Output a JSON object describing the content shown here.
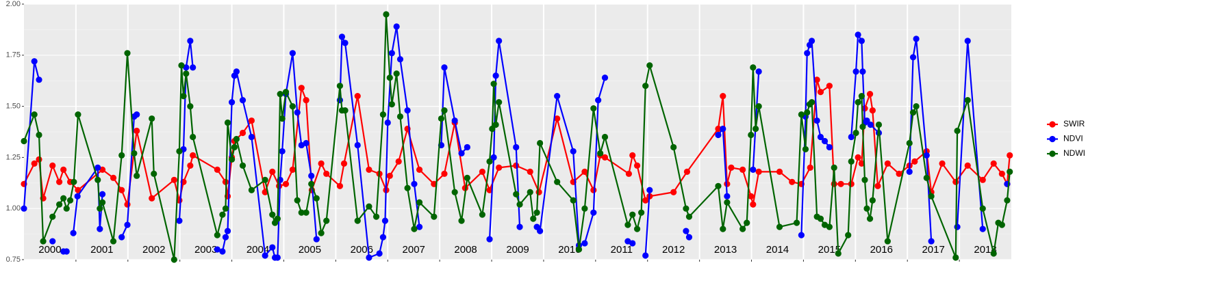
{
  "chart_data": {
    "type": "line",
    "xlim": [
      2000,
      2019
    ],
    "xticks": [
      2001,
      2002,
      2003,
      2004,
      2005,
      2006,
      2007,
      2008,
      2009,
      2010,
      2011,
      2012,
      2013,
      2014,
      2015,
      2016,
      2017,
      2018
    ],
    "ylim": [
      0.75,
      2.0
    ],
    "yticks": [
      {
        "value": 0.75,
        "label": "0.75"
      },
      {
        "value": 1.0,
        "label": "1.00"
      },
      {
        "value": 1.25,
        "label": "1.25"
      },
      {
        "value": 1.5,
        "label": "1.50"
      },
      {
        "value": 1.75,
        "label": "1.75"
      },
      {
        "value": 2.0,
        "label": "2.00"
      }
    ],
    "grid": true,
    "legend": "right",
    "annotations": [
      {
        "x": 2000.5,
        "label": "2000"
      },
      {
        "x": 2001.5,
        "label": "2001"
      },
      {
        "x": 2002.5,
        "label": "2002"
      },
      {
        "x": 2003.5,
        "label": "2003"
      },
      {
        "x": 2004.5,
        "label": "2004"
      },
      {
        "x": 2005.5,
        "label": "2005"
      },
      {
        "x": 2006.5,
        "label": "2006"
      },
      {
        "x": 2007.5,
        "label": "2007"
      },
      {
        "x": 2008.5,
        "label": "2008"
      },
      {
        "x": 2009.5,
        "label": "2009"
      },
      {
        "x": 2010.5,
        "label": "2010"
      },
      {
        "x": 2011.5,
        "label": "2011"
      },
      {
        "x": 2012.5,
        "label": "2012"
      },
      {
        "x": 2013.5,
        "label": "2013"
      },
      {
        "x": 2014.5,
        "label": "2014"
      },
      {
        "x": 2015.5,
        "label": "2015"
      },
      {
        "x": 2016.5,
        "label": "2016"
      },
      {
        "x": 2017.5,
        "label": "2017"
      },
      {
        "x": 2018.5,
        "label": "2018"
      }
    ],
    "series": [
      {
        "name": "SWIR",
        "color": "#ff0000",
        "x": [
          2000.0,
          2000.2,
          2000.29,
          2000.37,
          2000.55,
          2000.68,
          2000.76,
          2000.89,
          2001.04,
          2001.51,
          2001.72,
          2001.88,
          2001.99,
          2002.17,
          2002.46,
          2002.89,
          2002.99,
          2003.07,
          2003.2,
          2003.25,
          2003.72,
          2003.88,
          2003.92,
          2004.0,
          2004.05,
          2004.21,
          2004.38,
          2004.64,
          2004.78,
          2004.91,
          2005.04,
          2005.17,
          2005.34,
          2005.43,
          2005.54,
          2005.72,
          2005.82,
          2006.08,
          2006.16,
          2006.42,
          2006.64,
          2006.84,
          2006.97,
          2007.04,
          2007.21,
          2007.38,
          2007.61,
          2007.89,
          2008.09,
          2008.29,
          2008.49,
          2008.82,
          2008.96,
          2009.14,
          2009.47,
          2009.74,
          2009.91,
          2010.26,
          2010.57,
          2010.79,
          2010.96,
          2011.09,
          2011.18,
          2011.64,
          2011.71,
          2011.8,
          2011.96,
          2012.04,
          2012.5,
          2012.76,
          2013.36,
          2013.45,
          2013.53,
          2013.61,
          2013.83,
          2013.99,
          2014.03,
          2014.14,
          2014.54,
          2014.78,
          2014.96,
          2015.13,
          2015.26,
          2015.33,
          2015.5,
          2015.59,
          2015.72,
          2015.92,
          2016.05,
          2016.12,
          2016.18,
          2016.28,
          2016.33,
          2016.43,
          2016.62,
          2016.84,
          2017.04,
          2017.14,
          2017.37,
          2017.46,
          2017.67,
          2017.93,
          2018.16,
          2018.45,
          2018.66,
          2018.82,
          2018.92,
          2018.97
        ],
        "values": [
          1.12,
          1.22,
          1.24,
          1.05,
          1.21,
          1.13,
          1.19,
          1.13,
          1.09,
          1.19,
          1.15,
          1.09,
          1.02,
          1.38,
          1.05,
          1.14,
          1.04,
          1.13,
          1.21,
          1.26,
          1.19,
          1.13,
          1.06,
          1.25,
          1.33,
          1.37,
          1.43,
          1.08,
          1.18,
          1.11,
          1.12,
          1.19,
          1.59,
          1.53,
          1.09,
          1.22,
          1.17,
          1.11,
          1.22,
          1.55,
          1.19,
          1.17,
          1.09,
          1.16,
          1.23,
          1.39,
          1.19,
          1.12,
          1.17,
          1.42,
          1.1,
          1.18,
          1.09,
          1.2,
          1.21,
          1.18,
          1.08,
          1.44,
          1.13,
          1.18,
          1.09,
          1.26,
          1.25,
          1.17,
          1.26,
          1.21,
          1.04,
          1.06,
          1.08,
          1.18,
          1.39,
          1.55,
          1.12,
          1.2,
          1.19,
          1.06,
          1.02,
          1.18,
          1.18,
          1.13,
          1.12,
          1.2,
          1.63,
          1.57,
          1.6,
          1.12,
          1.12,
          1.12,
          1.25,
          1.22,
          1.49,
          1.56,
          1.48,
          1.11,
          1.22,
          1.17,
          1.21,
          1.23,
          1.28,
          1.08,
          1.22,
          1.13,
          1.21,
          1.14,
          1.22,
          1.17,
          1.12,
          1.26
        ]
      },
      {
        "name": "NDVI",
        "color": "#0000ff",
        "x": [
          2000.0,
          2000.2,
          2000.29,
          null,
          2000.55,
          null,
          2000.76,
          2000.82,
          null,
          2000.95,
          2001.03,
          2001.42,
          2001.46,
          2001.51,
          null,
          2001.88,
          2001.99,
          2002.12,
          2002.17,
          null,
          2002.99,
          2003.07,
          2003.12,
          2003.2,
          2003.25,
          null,
          2003.72,
          2003.82,
          2003.88,
          2003.92,
          2004.0,
          2004.05,
          2004.09,
          2004.21,
          2004.38,
          2004.64,
          2004.78,
          2004.83,
          2004.88,
          2004.93,
          2004.97,
          2005.04,
          2005.17,
          2005.26,
          2005.34,
          2005.43,
          2005.53,
          2005.63,
          null,
          2006.08,
          2006.12,
          2006.18,
          2006.42,
          2006.64,
          2006.84,
          2006.91,
          2006.95,
          2007.0,
          2007.08,
          2007.17,
          2007.24,
          2007.38,
          2007.51,
          2007.61,
          null,
          2008.03,
          2008.09,
          2008.29,
          2008.42,
          2008.53,
          null,
          2008.96,
          2009.04,
          2009.08,
          2009.14,
          2009.47,
          2009.54,
          null,
          2009.87,
          2009.93,
          2010.26,
          2010.57,
          2010.68,
          2010.79,
          2010.96,
          2011.05,
          2011.18,
          null,
          2011.62,
          2011.71,
          null,
          2011.96,
          2012.04,
          null,
          2012.74,
          2012.8,
          null,
          2013.36,
          2013.45,
          2013.53,
          null,
          2014.03,
          2014.14,
          null,
          2014.96,
          2015.04,
          2015.07,
          2015.12,
          2015.16,
          2015.26,
          2015.33,
          2015.41,
          2015.5,
          null,
          2015.92,
          2016.01,
          2016.05,
          2016.12,
          2016.14,
          2016.18,
          2016.22,
          2016.29,
          2016.45,
          null,
          2017.04,
          2017.11,
          2017.17,
          2017.37,
          2017.46,
          null,
          2017.96,
          2018.16,
          2018.45,
          null,
          2018.92
        ],
        "values": [
          1.0,
          1.72,
          1.63,
          null,
          0.84,
          null,
          0.79,
          0.79,
          null,
          0.88,
          1.06,
          1.2,
          0.9,
          1.07,
          null,
          0.86,
          0.92,
          1.45,
          1.46,
          null,
          0.94,
          1.29,
          1.69,
          1.82,
          1.69,
          null,
          0.8,
          0.79,
          0.86,
          0.89,
          1.52,
          1.65,
          1.67,
          1.53,
          1.35,
          0.77,
          0.81,
          0.76,
          0.76,
          1.14,
          1.28,
          1.56,
          1.76,
          1.47,
          1.31,
          1.32,
          1.16,
          0.85,
          null,
          1.53,
          1.84,
          1.81,
          1.31,
          0.76,
          0.78,
          0.86,
          0.94,
          1.42,
          1.76,
          1.89,
          1.73,
          1.48,
          1.12,
          0.91,
          null,
          1.31,
          1.69,
          1.43,
          1.27,
          1.3,
          null,
          0.85,
          1.25,
          1.65,
          1.82,
          1.3,
          0.91,
          null,
          0.91,
          0.89,
          1.55,
          1.28,
          0.82,
          0.83,
          0.98,
          1.53,
          1.64,
          null,
          0.84,
          0.83,
          null,
          0.77,
          1.09,
          null,
          0.89,
          0.86,
          null,
          1.36,
          1.39,
          1.06,
          null,
          1.19,
          1.67,
          null,
          0.87,
          1.45,
          1.76,
          1.8,
          1.82,
          1.43,
          1.35,
          1.33,
          1.3,
          null,
          1.35,
          1.67,
          1.85,
          1.82,
          1.67,
          1.42,
          1.43,
          1.41,
          1.37,
          null,
          1.18,
          1.74,
          1.83,
          1.26,
          0.84,
          null,
          0.91,
          1.82,
          0.9,
          null,
          1.12
        ]
      },
      {
        "name": "NDWI",
        "color": "#006400",
        "x": [
          2000.0,
          2000.2,
          2000.29,
          2000.37,
          2000.55,
          2000.68,
          2000.76,
          2000.82,
          2000.89,
          2000.96,
          2001.04,
          2001.42,
          2001.46,
          2001.51,
          2001.72,
          2001.88,
          2001.99,
          2002.12,
          2002.17,
          2002.46,
          2002.5,
          2002.89,
          2002.99,
          2003.03,
          2003.07,
          2003.12,
          2003.2,
          2003.25,
          2003.72,
          2003.82,
          2003.88,
          2003.92,
          2004.0,
          2004.05,
          2004.09,
          2004.21,
          2004.38,
          2004.64,
          2004.78,
          2004.83,
          2004.88,
          2004.93,
          2004.97,
          2005.04,
          2005.17,
          2005.26,
          2005.34,
          2005.43,
          2005.53,
          2005.63,
          2005.72,
          2005.82,
          2006.08,
          2006.12,
          2006.18,
          2006.42,
          2006.64,
          2006.78,
          2006.91,
          2006.97,
          2007.04,
          2007.08,
          2007.17,
          2007.24,
          2007.38,
          2007.51,
          2007.61,
          2007.89,
          2008.03,
          2008.09,
          2008.29,
          2008.42,
          2008.53,
          2008.82,
          2008.96,
          2009.01,
          2009.04,
          2009.08,
          2009.14,
          2009.47,
          2009.54,
          2009.74,
          2009.8,
          2009.87,
          2009.93,
          2010.26,
          2010.57,
          2010.68,
          2010.79,
          2010.96,
          2011.09,
          2011.18,
          2011.62,
          2011.71,
          2011.8,
          2011.88,
          2011.96,
          2012.04,
          2012.5,
          2012.74,
          2012.8,
          2013.36,
          2013.45,
          2013.53,
          2013.83,
          2013.91,
          2013.99,
          2014.03,
          2014.08,
          2014.14,
          2014.54,
          2014.87,
          2014.96,
          2015.04,
          2015.07,
          2015.12,
          2015.16,
          2015.26,
          2015.33,
          2015.41,
          2015.5,
          2015.59,
          2015.67,
          2015.86,
          2015.92,
          2016.01,
          2016.05,
          2016.12,
          2016.14,
          2016.18,
          2016.22,
          2016.28,
          2016.33,
          2016.45,
          2016.62,
          2017.04,
          2017.11,
          2017.17,
          2017.37,
          2017.46,
          2017.93,
          2017.96,
          2018.16,
          2018.45,
          2018.66,
          2018.75,
          2018.82,
          2018.92,
          2018.97
        ],
        "values": [
          1.33,
          1.46,
          1.36,
          0.84,
          0.96,
          1.02,
          1.05,
          1.0,
          1.04,
          1.13,
          1.46,
          1.14,
          1.0,
          1.03,
          0.84,
          1.26,
          1.76,
          1.27,
          1.16,
          1.44,
          1.17,
          0.75,
          1.28,
          1.7,
          1.55,
          1.66,
          1.5,
          1.35,
          0.87,
          0.97,
          1.0,
          1.42,
          1.24,
          1.3,
          1.34,
          1.21,
          1.09,
          1.14,
          0.97,
          0.93,
          0.95,
          1.56,
          1.44,
          1.57,
          1.5,
          1.04,
          0.98,
          0.98,
          1.12,
          1.05,
          0.88,
          0.94,
          1.6,
          1.48,
          1.48,
          0.94,
          1.01,
          0.96,
          1.46,
          1.95,
          1.64,
          1.51,
          1.66,
          1.45,
          1.1,
          0.9,
          1.03,
          0.96,
          1.44,
          1.48,
          1.08,
          0.94,
          1.15,
          0.97,
          1.23,
          1.39,
          1.61,
          1.41,
          1.52,
          1.07,
          1.02,
          1.08,
          0.95,
          0.98,
          1.32,
          1.13,
          1.04,
          0.8,
          1.0,
          1.49,
          1.27,
          1.35,
          0.92,
          0.97,
          0.9,
          0.98,
          1.6,
          1.7,
          1.3,
          1.0,
          0.96,
          1.11,
          0.9,
          1.03,
          0.9,
          0.93,
          1.36,
          1.69,
          1.39,
          1.5,
          0.91,
          0.93,
          1.46,
          1.29,
          1.47,
          1.51,
          1.52,
          0.96,
          0.95,
          0.92,
          0.91,
          1.2,
          0.78,
          0.87,
          1.23,
          1.37,
          1.52,
          1.55,
          1.4,
          1.14,
          1.0,
          0.95,
          1.04,
          1.41,
          0.84,
          1.32,
          1.47,
          1.5,
          1.15,
          1.06,
          0.76,
          1.38,
          1.53,
          1.0,
          0.78,
          0.93,
          0.92,
          1.04,
          1.18
        ]
      }
    ]
  }
}
